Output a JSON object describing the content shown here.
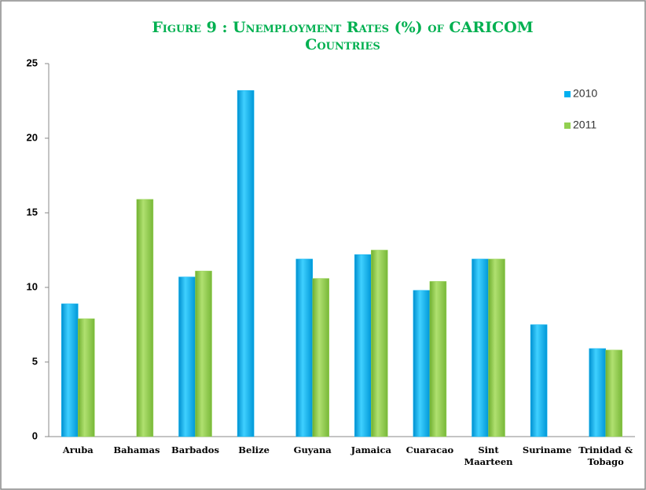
{
  "chart_data": {
    "type": "bar",
    "title": "Figure 9 : Unemployment Rates (%) of CARICOM Countries",
    "categories": [
      "Aruba",
      "Bahamas",
      "Barbados",
      "Belize",
      "Guyana",
      "Jamaica",
      "Cuaracao",
      "Sint Maarteen",
      "Suriname",
      "Trinidad & Tobago"
    ],
    "series": [
      {
        "name": "2010",
        "color": "#00b0f0",
        "values": [
          8.9,
          null,
          10.7,
          23.2,
          11.9,
          12.2,
          9.8,
          11.9,
          7.5,
          5.9
        ]
      },
      {
        "name": "2011",
        "color": "#92d050",
        "values": [
          7.9,
          15.9,
          11.1,
          null,
          10.6,
          12.5,
          10.4,
          11.9,
          null,
          5.8
        ]
      }
    ],
    "ylim": [
      0,
      25
    ],
    "yticks": [
      0,
      5,
      10,
      15,
      20,
      25
    ],
    "grid": false,
    "legend": "upper right"
  }
}
